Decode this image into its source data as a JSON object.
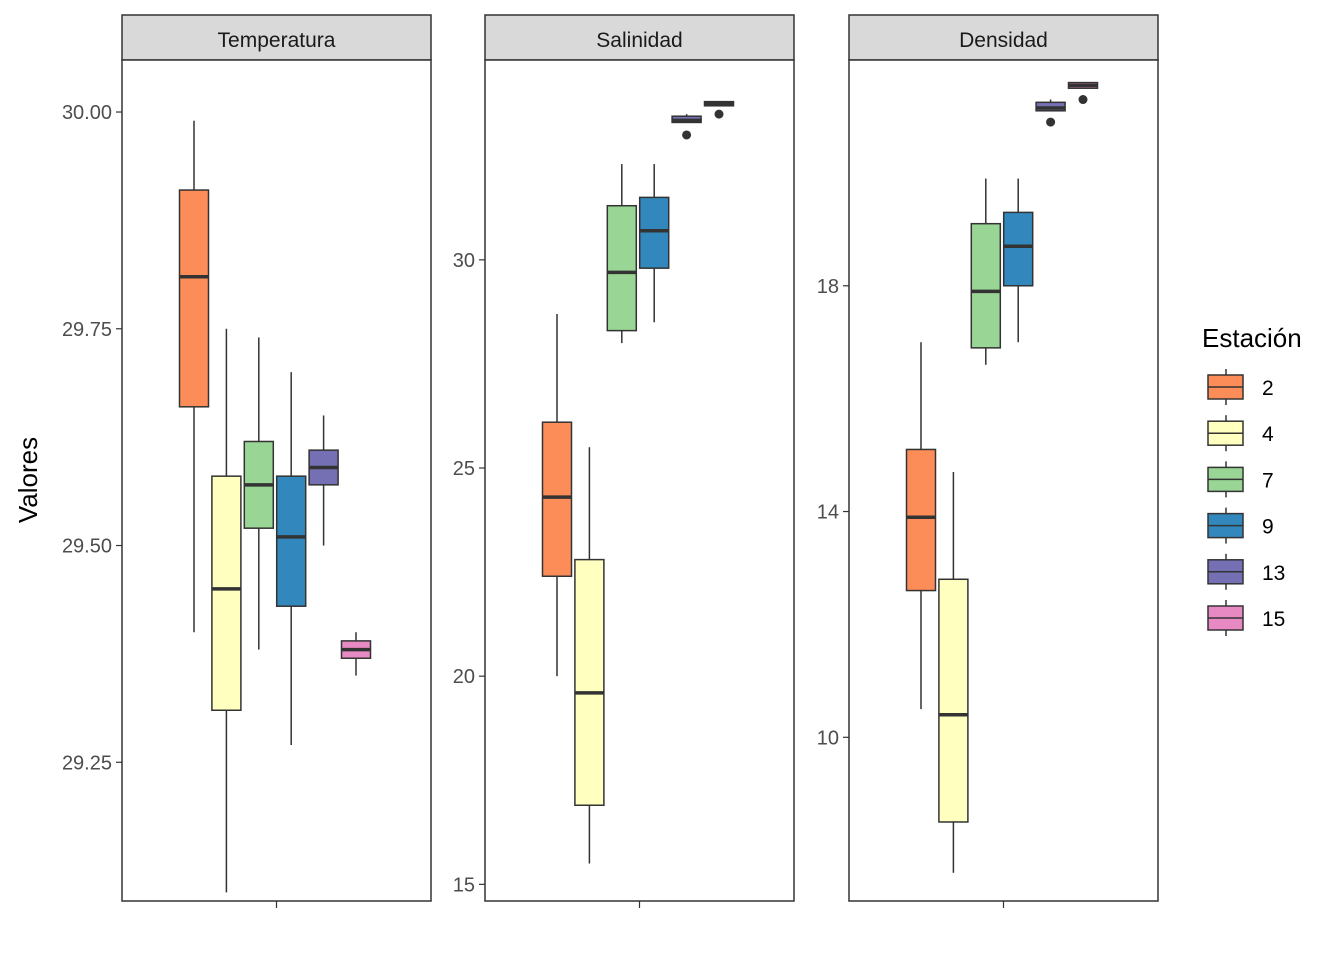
{
  "chart_data": {
    "type": "box",
    "ylabel": "Valores",
    "legend": {
      "title": "Estación",
      "placement": "right",
      "entries": [
        {
          "label": "2",
          "color": "#FC8D59"
        },
        {
          "label": "4",
          "color": "#FFFFBF"
        },
        {
          "label": "7",
          "color": "#99D594"
        },
        {
          "label": "9",
          "color": "#3288BD"
        },
        {
          "label": "13",
          "color": "#7570B3"
        },
        {
          "label": "15",
          "color": "#E78AC3"
        }
      ]
    },
    "panels": [
      {
        "title": "Temperatura",
        "ylim": [
          29.09,
          30.06
        ],
        "ticks": [
          {
            "value": 29.25,
            "label": "29.25"
          },
          {
            "value": 29.5,
            "label": "29.50"
          },
          {
            "value": 29.75,
            "label": "29.75"
          },
          {
            "value": 30.0,
            "label": "30.00"
          }
        ],
        "boxes": [
          {
            "station": "2",
            "min": 29.4,
            "q1": 29.66,
            "median": 29.81,
            "q3": 29.91,
            "max": 29.99,
            "outliers": []
          },
          {
            "station": "4",
            "min": 29.1,
            "q1": 29.31,
            "median": 29.45,
            "q3": 29.58,
            "max": 29.75,
            "outliers": []
          },
          {
            "station": "7",
            "min": 29.38,
            "q1": 29.52,
            "median": 29.57,
            "q3": 29.62,
            "max": 29.74,
            "outliers": []
          },
          {
            "station": "9",
            "min": 29.27,
            "q1": 29.43,
            "median": 29.51,
            "q3": 29.58,
            "max": 29.7,
            "outliers": []
          },
          {
            "station": "13",
            "min": 29.5,
            "q1": 29.57,
            "median": 29.59,
            "q3": 29.61,
            "max": 29.65,
            "outliers": []
          },
          {
            "station": "15",
            "min": 29.35,
            "q1": 29.37,
            "median": 29.38,
            "q3": 29.39,
            "max": 29.4,
            "outliers": []
          }
        ]
      },
      {
        "title": "Salinidad",
        "ylim": [
          14.6,
          34.8
        ],
        "ticks": [
          {
            "value": 15,
            "label": "15"
          },
          {
            "value": 20,
            "label": "20"
          },
          {
            "value": 25,
            "label": "25"
          },
          {
            "value": 30,
            "label": "30"
          }
        ],
        "boxes": [
          {
            "station": "2",
            "min": 20.0,
            "q1": 22.4,
            "median": 24.3,
            "q3": 26.1,
            "max": 28.7,
            "outliers": []
          },
          {
            "station": "4",
            "min": 15.5,
            "q1": 16.9,
            "median": 19.6,
            "q3": 22.8,
            "max": 25.5,
            "outliers": []
          },
          {
            "station": "7",
            "min": 28.0,
            "q1": 28.3,
            "median": 29.7,
            "q3": 31.3,
            "max": 32.3,
            "outliers": []
          },
          {
            "station": "9",
            "min": 28.5,
            "q1": 29.8,
            "median": 30.7,
            "q3": 31.5,
            "max": 32.3,
            "outliers": []
          },
          {
            "station": "13",
            "min": 33.3,
            "q1": 33.3,
            "median": 33.35,
            "q3": 33.45,
            "max": 33.5,
            "outliers": [
              33.0
            ]
          },
          {
            "station": "15",
            "min": 33.7,
            "q1": 33.7,
            "median": 33.75,
            "q3": 33.8,
            "max": 33.8,
            "outliers": [
              33.5
            ]
          }
        ]
      },
      {
        "title": "Densidad",
        "ylim": [
          7.1,
          22.0
        ],
        "ticks": [
          {
            "value": 10,
            "label": "10"
          },
          {
            "value": 14,
            "label": "14"
          },
          {
            "value": 18,
            "label": "18"
          }
        ],
        "boxes": [
          {
            "station": "2",
            "min": 10.5,
            "q1": 12.6,
            "median": 13.9,
            "q3": 15.1,
            "max": 17.0,
            "outliers": []
          },
          {
            "station": "4",
            "min": 7.6,
            "q1": 8.5,
            "median": 10.4,
            "q3": 12.8,
            "max": 14.7,
            "outliers": []
          },
          {
            "station": "7",
            "min": 16.6,
            "q1": 16.9,
            "median": 17.9,
            "q3": 19.1,
            "max": 19.9,
            "outliers": []
          },
          {
            "station": "9",
            "min": 17.0,
            "q1": 18.0,
            "median": 18.7,
            "q3": 19.3,
            "max": 19.9,
            "outliers": []
          },
          {
            "station": "13",
            "min": 21.1,
            "q1": 21.1,
            "median": 21.15,
            "q3": 21.25,
            "max": 21.3,
            "outliers": [
              20.9
            ]
          },
          {
            "station": "15",
            "min": 21.5,
            "q1": 21.5,
            "median": 21.55,
            "q3": 21.6,
            "max": 21.6,
            "outliers": [
              21.3
            ]
          }
        ]
      }
    ]
  }
}
